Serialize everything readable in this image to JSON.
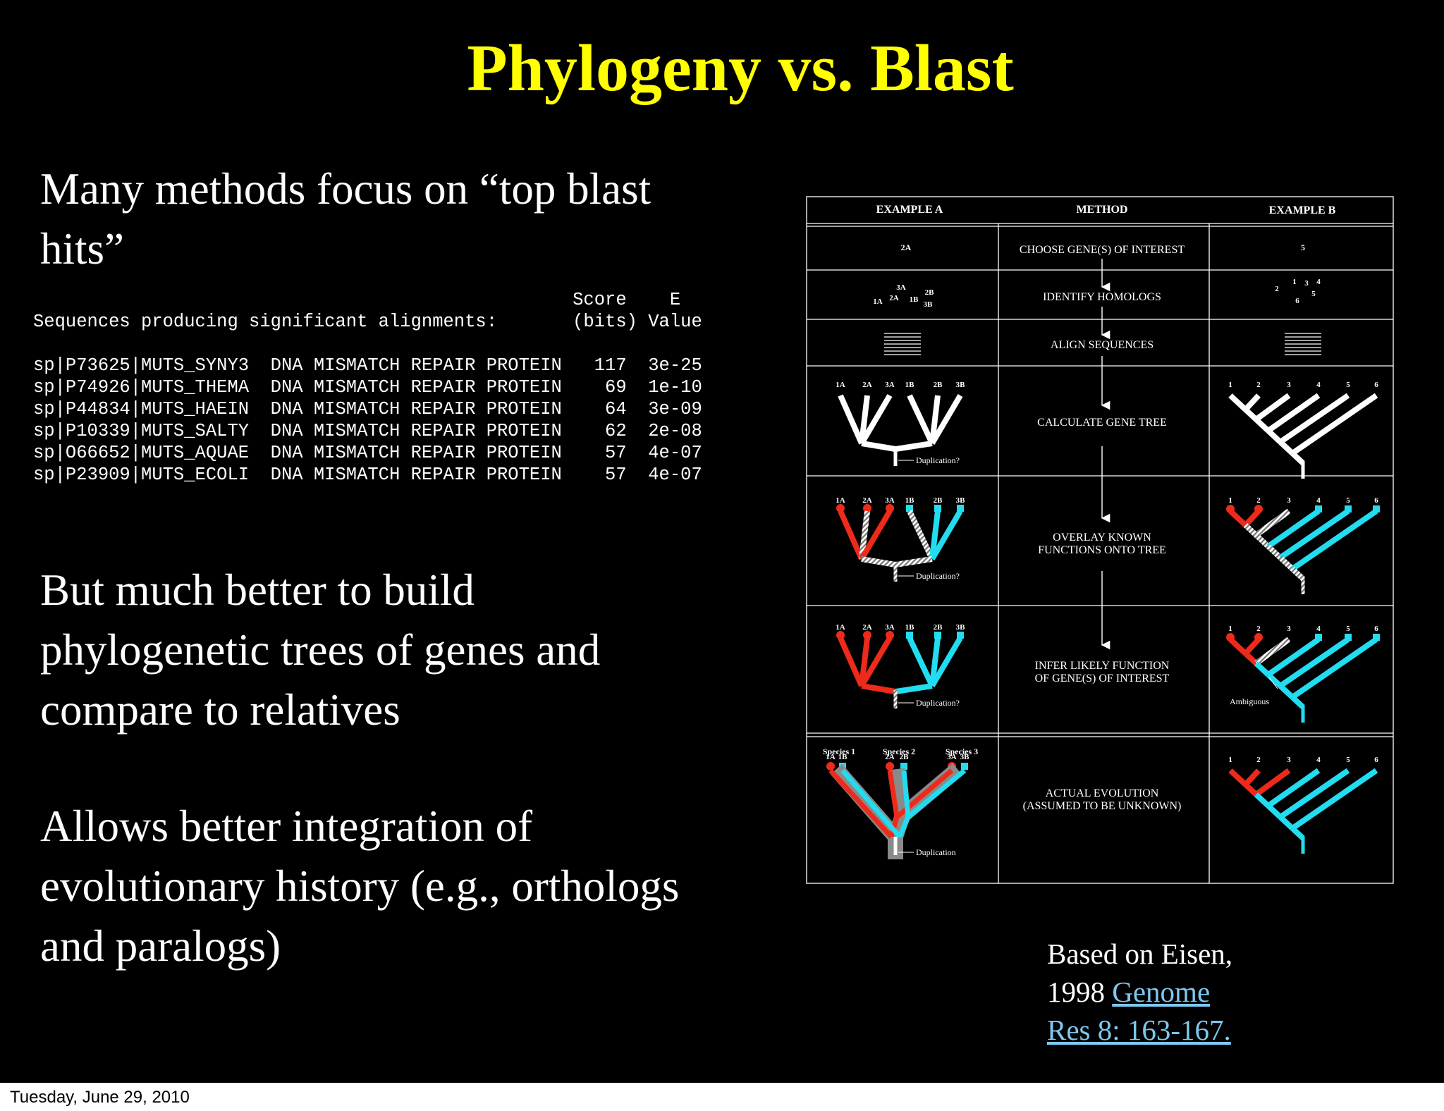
{
  "slide": {
    "title": "Phylogeny vs. Blast",
    "paragraph1": "Many methods focus on “top blast hits”",
    "paragraph2": "But much better to build phylogenetic trees of genes and compare to relatives",
    "paragraph3": "Allows better integration of evolutionary history (e.g., orthologs and paralogs)"
  },
  "blast": {
    "header_line1": "                                                  Score    E",
    "header_line2": "Sequences producing significant alignments:       (bits) Value",
    "rows": [
      "sp|P73625|MUTS_SYNY3  DNA MISMATCH REPAIR PROTEIN   117  3e-25",
      "sp|P74926|MUTS_THEMA  DNA MISMATCH REPAIR PROTEIN    69  1e-10",
      "sp|P44834|MUTS_HAEIN  DNA MISMATCH REPAIR PROTEIN    64  3e-09",
      "sp|P10339|MUTS_SALTY  DNA MISMATCH REPAIR PROTEIN    62  2e-08",
      "sp|O66652|MUTS_AQUAE  DNA MISMATCH REPAIR PROTEIN    57  4e-07",
      "sp|P23909|MUTS_ECOLI  DNA MISMATCH REPAIR PROTEIN    57  4e-07"
    ]
  },
  "diagram": {
    "headers": {
      "example_a": "EXAMPLE A",
      "method": "METHOD",
      "example_b": "EXAMPLE B"
    },
    "steps": {
      "choose": "CHOOSE GENE(S) OF INTEREST",
      "identify": "IDENTIFY HOMOLOGS",
      "align": "ALIGN SEQUENCES",
      "calculate": "CALCULATE GENE TREE",
      "overlay_1": "OVERLAY KNOWN",
      "overlay_2": "FUNCTIONS ONTO TREE",
      "infer_1": "INFER LIKELY FUNCTION",
      "infer_2": "OF GENE(S) OF INTEREST",
      "actual_1": "ACTUAL EVOLUTION",
      "actual_2": "(ASSUMED TO BE UNKNOWN)"
    },
    "labels_a": {
      "a1": "1A",
      "a2": "2A",
      "a3": "3A",
      "b1": "1B",
      "b2": "2B",
      "b3": "3B"
    },
    "labels_b": {
      "n1": "1",
      "n2": "2",
      "n3": "3",
      "n4": "4",
      "n5": "5",
      "n6": "6"
    },
    "gene_of_interest_a": "2A",
    "gene_of_interest_b": "5",
    "duplication_q": "Duplication?",
    "duplication": "Duplication",
    "ambiguous": "Ambiguous",
    "species": {
      "s1": "Species 1",
      "s2": "Species 2",
      "s3": "Species 3"
    },
    "colors": {
      "red": "#ee2a1b",
      "cyan": "#22dcf0",
      "gray": "#8a8a8a",
      "white": "#ffffff"
    }
  },
  "citation": {
    "line1": "Based on Eisen,",
    "prefix": "1998 ",
    "link1": "Genome",
    "link2": "Res 8: 163-167."
  },
  "footer": {
    "date": "Tuesday, June 29, 2010"
  }
}
